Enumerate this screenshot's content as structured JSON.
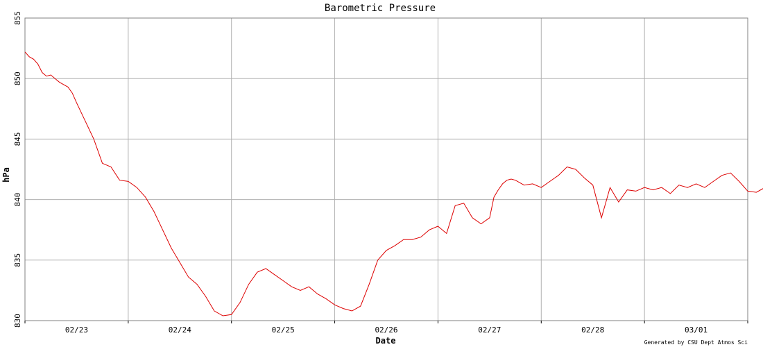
{
  "chart_data": {
    "type": "line",
    "title": "Barometric Pressure",
    "xlabel": "Date",
    "ylabel": "hPa",
    "credit": "Generated by CSU Dept Atmos Sci",
    "ylim": [
      830,
      855
    ],
    "yticks": [
      830,
      835,
      840,
      845,
      850,
      855
    ],
    "xlim": [
      "02/22 12:00",
      "03/01 12:00"
    ],
    "xticks": [
      "02/23",
      "02/24",
      "02/25",
      "02/26",
      "02/27",
      "02/28",
      "03/01"
    ],
    "grid": true,
    "line_color": "#dd0000",
    "series": [
      {
        "x": [
          "02/22 12:00",
          "02/22 13:00",
          "02/22 14:00",
          "02/22 15:00",
          "02/22 16:00",
          "02/22 17:00",
          "02/22 18:00",
          "02/22 19:00",
          "02/22 20:00",
          "02/22 21:00",
          "02/22 22:00",
          "02/22 23:00",
          "02/23 00:00",
          "02/23 02:00",
          "02/23 04:00",
          "02/23 06:00",
          "02/23 08:00",
          "02/23 10:00",
          "02/23 12:00",
          "02/23 14:00",
          "02/23 16:00",
          "02/23 18:00",
          "02/23 20:00",
          "02/23 22:00",
          "02/24 00:00",
          "02/24 02:00",
          "02/24 04:00",
          "02/24 06:00",
          "02/24 08:00",
          "02/24 10:00",
          "02/24 12:00",
          "02/24 14:00",
          "02/24 16:00",
          "02/24 18:00",
          "02/24 20:00",
          "02/24 22:00",
          "02/25 00:00",
          "02/25 02:00",
          "02/25 04:00",
          "02/25 06:00",
          "02/25 08:00",
          "02/25 10:00",
          "02/25 12:00",
          "02/25 14:00",
          "02/25 16:00",
          "02/25 18:00",
          "02/25 20:00",
          "02/25 22:00",
          "02/26 00:00",
          "02/26 02:00",
          "02/26 04:00",
          "02/26 06:00",
          "02/26 08:00",
          "02/26 10:00",
          "02/26 12:00",
          "02/26 14:00",
          "02/26 16:00",
          "02/26 18:00",
          "02/26 20:00",
          "02/26 22:00",
          "02/27 00:00",
          "02/27 01:00",
          "02/27 02:00",
          "02/27 03:00",
          "02/27 04:00",
          "02/27 05:00",
          "02/27 06:00",
          "02/27 08:00",
          "02/27 10:00",
          "02/27 12:00",
          "02/27 14:00",
          "02/27 16:00",
          "02/27 18:00",
          "02/27 20:00",
          "02/27 22:00",
          "02/28 00:00",
          "02/28 02:00",
          "02/28 04:00",
          "02/28 06:00",
          "02/28 08:00",
          "02/28 10:00",
          "02/28 12:00",
          "02/28 14:00",
          "02/28 16:00",
          "02/28 18:00",
          "02/28 20:00",
          "02/28 22:00",
          "03/01 00:00",
          "03/01 02:00",
          "03/01 04:00",
          "03/01 06:00",
          "03/01 08:00",
          "03/01 10:00",
          "03/01 12:00",
          "03/01 14:00",
          "03/01 16:00"
        ],
        "y": [
          852.2,
          851.8,
          851.6,
          851.2,
          850.5,
          850.2,
          850.3,
          850.0,
          849.7,
          849.5,
          849.3,
          848.8,
          848.0,
          846.5,
          845.0,
          843.0,
          842.7,
          841.6,
          841.5,
          841.0,
          840.2,
          839.0,
          837.5,
          836.0,
          834.8,
          833.6,
          833.0,
          832.0,
          830.8,
          830.4,
          830.5,
          831.5,
          833.0,
          834.0,
          834.3,
          833.8,
          833.3,
          832.8,
          832.5,
          832.8,
          832.2,
          831.8,
          831.3,
          831.0,
          830.8,
          831.2,
          833.0,
          835.0,
          835.8,
          836.2,
          836.7,
          836.7,
          836.9,
          837.5,
          837.8,
          837.2,
          839.5,
          839.7,
          838.5,
          838.0,
          838.5,
          840.2,
          840.8,
          841.3,
          841.6,
          841.7,
          841.6,
          841.2,
          841.3,
          841.0,
          841.5,
          842.0,
          842.7,
          842.5,
          841.8,
          841.2,
          838.5,
          841.0,
          839.8,
          840.8,
          840.7,
          841.0,
          840.8,
          841.0,
          840.5,
          841.2,
          841.0,
          841.3,
          841.0,
          841.5,
          842.0,
          842.2,
          841.5,
          840.7,
          840.6,
          841.0
        ]
      }
    ]
  }
}
